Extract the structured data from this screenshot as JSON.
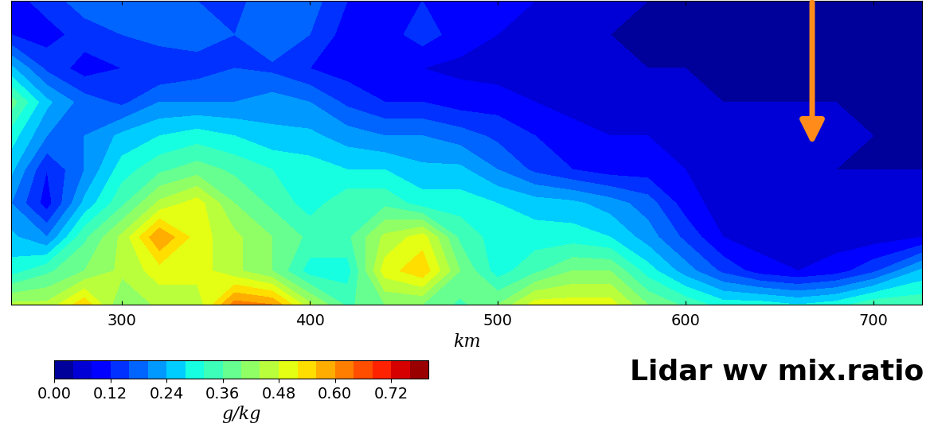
{
  "chart_data": {
    "type": "contour",
    "x_label": "km",
    "annotation": "Lidar wv mix.ratio",
    "tick_labels": "x",
    "xlim": [
      241,
      726
    ],
    "xticks": [
      300,
      400,
      500,
      600,
      700
    ],
    "ylim": [
      0,
      9
    ],
    "x": [
      241,
      260,
      280,
      300,
      320,
      340,
      360,
      380,
      400,
      420,
      440,
      460,
      480,
      500,
      520,
      540,
      560,
      580,
      600,
      620,
      640,
      660,
      680,
      700,
      726
    ],
    "y": [
      0,
      1,
      2,
      3,
      4,
      5,
      6,
      7,
      8,
      9
    ],
    "cells": [
      [
        0.45,
        0.45,
        0.55,
        0.4,
        0.45,
        0.45,
        0.62,
        0.6,
        0.45,
        0.35,
        0.4,
        0.4,
        0.35,
        0.4,
        0.5,
        0.5,
        0.5,
        0.4,
        0.35,
        0.3,
        0.3,
        0.28,
        0.3,
        0.35,
        0.35
      ],
      [
        0.3,
        0.35,
        0.4,
        0.45,
        0.5,
        0.5,
        0.45,
        0.4,
        0.3,
        0.3,
        0.5,
        0.55,
        0.4,
        0.3,
        0.35,
        0.4,
        0.4,
        0.3,
        0.22,
        0.15,
        0.1,
        0.08,
        0.1,
        0.15,
        0.25
      ],
      [
        0.25,
        0.2,
        0.35,
        0.45,
        0.6,
        0.5,
        0.45,
        0.4,
        0.35,
        0.35,
        0.45,
        0.5,
        0.35,
        0.3,
        0.3,
        0.3,
        0.28,
        0.22,
        0.15,
        0.08,
        0.06,
        0.05,
        0.06,
        0.06,
        0.08
      ],
      [
        0.2,
        0.1,
        0.25,
        0.35,
        0.45,
        0.5,
        0.4,
        0.35,
        0.3,
        0.35,
        0.35,
        0.3,
        0.3,
        0.28,
        0.26,
        0.25,
        0.22,
        0.18,
        0.1,
        0.06,
        0.05,
        0.04,
        0.05,
        0.05,
        0.06
      ],
      [
        0.25,
        0.12,
        0.2,
        0.3,
        0.35,
        0.38,
        0.35,
        0.32,
        0.3,
        0.28,
        0.28,
        0.25,
        0.25,
        0.2,
        0.15,
        0.12,
        0.1,
        0.1,
        0.08,
        0.06,
        0.05,
        0.05,
        0.04,
        0.04,
        0.04
      ],
      [
        0.3,
        0.2,
        0.2,
        0.25,
        0.28,
        0.3,
        0.28,
        0.25,
        0.25,
        0.22,
        0.2,
        0.2,
        0.18,
        0.15,
        0.12,
        0.1,
        0.08,
        0.08,
        0.06,
        0.05,
        0.05,
        0.05,
        0.05,
        0.04,
        0.04
      ],
      [
        0.38,
        0.25,
        0.18,
        0.15,
        0.2,
        0.2,
        0.2,
        0.22,
        0.2,
        0.15,
        0.12,
        0.12,
        0.1,
        0.1,
        0.08,
        0.06,
        0.06,
        0.06,
        0.05,
        0.04,
        0.04,
        0.04,
        0.04,
        0.04,
        0.04
      ],
      [
        0.25,
        0.15,
        0.1,
        0.12,
        0.12,
        0.14,
        0.16,
        0.15,
        0.12,
        0.1,
        0.08,
        0.08,
        0.07,
        0.06,
        0.06,
        0.05,
        0.05,
        0.04,
        0.04,
        0.04,
        0.04,
        0.04,
        0.04,
        0.04,
        0.04
      ],
      [
        0.12,
        0.1,
        0.14,
        0.16,
        0.18,
        0.18,
        0.16,
        0.2,
        0.16,
        0.1,
        0.1,
        0.14,
        0.1,
        0.08,
        0.08,
        0.05,
        0.04,
        0.04,
        0.04,
        0.04,
        0.04,
        0.04,
        0.04,
        0.04,
        0.04
      ],
      [
        0.1,
        0.14,
        0.18,
        0.2,
        0.2,
        0.16,
        0.14,
        0.2,
        0.18,
        0.12,
        0.1,
        0.12,
        0.1,
        0.1,
        0.08,
        0.06,
        0.05,
        0.04,
        0.04,
        0.04,
        0.04,
        0.04,
        0.04,
        0.04,
        0.04
      ]
    ],
    "colorbar": {
      "label": "g/kg",
      "range": [
        0,
        0.8
      ],
      "levels": [
        0,
        0.04,
        0.08,
        0.12,
        0.16,
        0.2,
        0.24,
        0.28,
        0.32,
        0.36,
        0.4,
        0.44,
        0.48,
        0.52,
        0.56,
        0.6,
        0.64,
        0.68,
        0.72,
        0.76,
        0.8
      ],
      "ticks": [
        {
          "value": 0,
          "label": "0.00"
        },
        {
          "value": 0.12,
          "label": "0.12"
        },
        {
          "value": 0.24,
          "label": "0.24"
        },
        {
          "value": 0.36,
          "label": "0.36"
        },
        {
          "value": 0.48,
          "label": "0.48"
        },
        {
          "value": 0.6,
          "label": "0.60"
        },
        {
          "value": 0.72,
          "label": "0.72"
        }
      ]
    }
  }
}
